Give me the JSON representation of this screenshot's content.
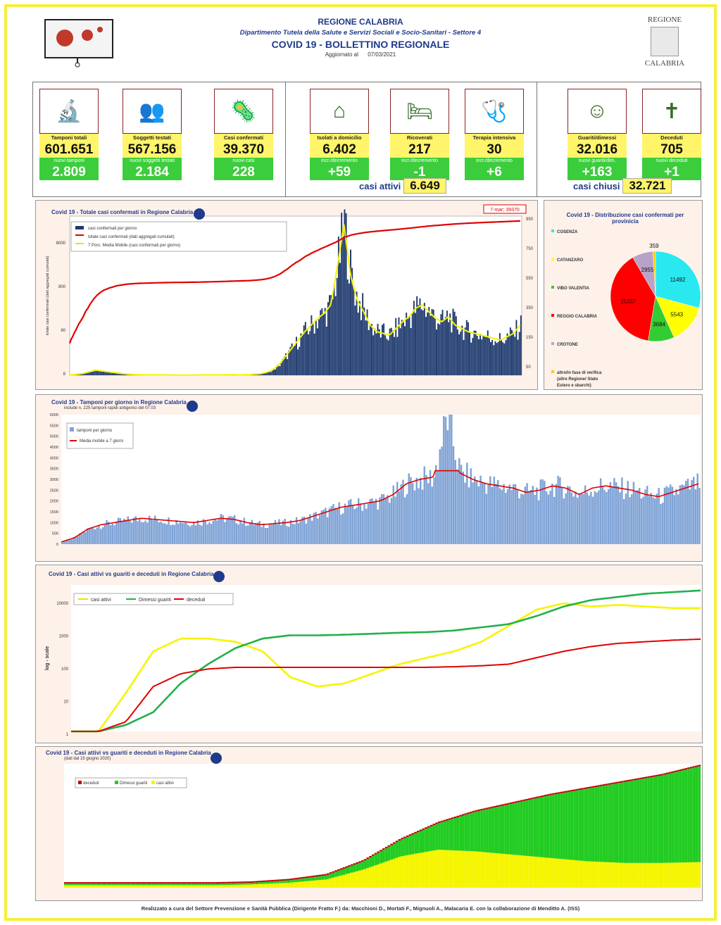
{
  "header": {
    "region": "REGIONE CALABRIA",
    "department": "Dipartimento Tutela della Salute e Servizi Sociali e Socio-Sanitari - Settore 4",
    "title": "COVID 19 - BOLLETTINO REGIONALE",
    "updated_label": "Aggiornato al",
    "updated_date": "07/03/2021",
    "logo_text_top": "REGIONE",
    "logo_text_bottom": "CALABRIA"
  },
  "kpis": [
    {
      "label": "Tamponi totali",
      "value": "601.651",
      "sub_label": "nuovi tamponi",
      "sub_value": "2.809",
      "icon": "lab-icon"
    },
    {
      "label": "Soggetti testati",
      "value": "567.156",
      "sub_label": "nuovi soggetti testati",
      "sub_value": "2.184",
      "icon": "people-icon"
    },
    {
      "label": "Casi confermati",
      "value": "39.370",
      "sub_label": "nuovi casi",
      "sub_value": "228",
      "icon": "virus-person-icon"
    },
    {
      "label": "Isolati a domicilio",
      "value": "6.402",
      "sub_label": "incr./decremento",
      "sub_value": "+59",
      "icon": "house-icon"
    },
    {
      "label": "Ricoverati",
      "value": "217",
      "sub_label": "incr./decremento",
      "sub_value": "-1",
      "icon": "bed-icon"
    },
    {
      "label": "Terapia intensiva",
      "value": "30",
      "sub_label": "incr./decremento",
      "sub_value": "+6",
      "icon": "icu-icon"
    },
    {
      "label": "Guariti/dimessi",
      "value": "32.016",
      "sub_label": "nuovi guariti/dim.",
      "sub_value": "+163",
      "icon": "recovered-icon"
    },
    {
      "label": "Deceduti",
      "value": "705",
      "sub_label": "nuovi deceduti",
      "sub_value": "+1",
      "icon": "deceased-stamp-icon"
    }
  ],
  "summary": {
    "active_label": "casi attivi",
    "active_value": "6.649",
    "closed_label": "casi chiusi",
    "closed_value": "32.721"
  },
  "colors": {
    "navy": "#1f3a6e",
    "red": "#e00000",
    "yellow": "#f5f500",
    "green": "#22b14c",
    "cyan": "#29e8f0",
    "lilac": "#b7a3c8",
    "bar_blue": "#7fa3d6"
  },
  "chart_data": [
    {
      "id": "cumulative",
      "type": "bar",
      "title": "Covid 19 - Totale casi confermati in Regione Calabria",
      "ylabel": "totale casi confermati (dati aggregati cumulati)",
      "annotation": "7-mar; 39370",
      "left_ticks": [
        "8000",
        "800",
        "80",
        "8"
      ],
      "right_ticks": [
        "950",
        "750",
        "550",
        "350",
        "150",
        "50"
      ],
      "legend": [
        "casi confermati per giorno",
        "totale casi confermati (dati aggregati cumulati)",
        "7 Porc. Media Mobile (casi confermati per giorno)"
      ],
      "series": [
        {
          "name": "casi confermati per giorno",
          "kind": "daily",
          "values": [
            2,
            5,
            10,
            20,
            30,
            25,
            20,
            15,
            10,
            6,
            4,
            3,
            2,
            2,
            2,
            2,
            1,
            1,
            1,
            1,
            2,
            2,
            2,
            2,
            3,
            3,
            2,
            3,
            5,
            8,
            15,
            30,
            60,
            110,
            160,
            210,
            260,
            300,
            340,
            370,
            420,
            650,
            900,
            600,
            450,
            380,
            300,
            260,
            250,
            240,
            280,
            320,
            350,
            400,
            420,
            380,
            340,
            320,
            350,
            300,
            280,
            260,
            250,
            240,
            230,
            220,
            210,
            230,
            250,
            300
          ]
        },
        {
          "name": "totale casi confermati (dati aggregati cumulati)",
          "kind": "cumulative"
        },
        {
          "name": "7 Porc. Media Mobile (casi confermati per giorno)",
          "kind": "moving-average"
        }
      ]
    },
    {
      "id": "pie",
      "type": "pie",
      "title": "Covid 19 - Distribuzione casi confermati per provinicia",
      "legend": [
        "COSENZA",
        "CATANZARO",
        "VIBO VALENTIA",
        "REGGIO CALABRIA",
        "CROTONE",
        "altro/in fase di verifica (altre Regione/ Stato Estero e sbarchi)"
      ],
      "categories": [
        "COSENZA",
        "CATANZARO",
        "VIBO VALENTIA",
        "REGGIO CALABRIA",
        "CROTONE",
        "altro/in fase di verifica"
      ],
      "values": [
        11492,
        5543,
        3684,
        15337,
        2955,
        359
      ],
      "labels": [
        "11492",
        "5543",
        "3684",
        "15337",
        "2955",
        "359"
      ]
    },
    {
      "id": "tamponi",
      "type": "bar",
      "title": "Covid 19 - Tamponi per giorno in Regione Calabria",
      "subtitle": "include n. 225 tamponi rapidi antigenici del 07.03",
      "ylim": [
        0,
        6000
      ],
      "yticks": [
        "6000",
        "5500",
        "5000",
        "4500",
        "4000",
        "3500",
        "3000",
        "2500",
        "2000",
        "1500",
        "1000",
        "500",
        "0"
      ],
      "legend": [
        "tamponi per giorno",
        "Media mobile a 7 giorni"
      ],
      "series": [
        {
          "name": "tamponi per giorno",
          "values": [
            100,
            300,
            700,
            900,
            1000,
            1100,
            1200,
            1150,
            1100,
            1050,
            1000,
            1100,
            1200,
            1150,
            1000,
            900,
            950,
            1000,
            1100,
            1300,
            1500,
            1700,
            1800,
            1900,
            2000,
            2300,
            2800,
            3000,
            3100,
            5900,
            3300,
            3000,
            2800,
            2700,
            2600,
            2400,
            2500,
            2700,
            2600,
            2300,
            2600,
            2700,
            2600,
            2500,
            2300,
            2200,
            2400,
            2600,
            2800
          ]
        },
        {
          "name": "Media mobile a 7 giorni"
        }
      ]
    },
    {
      "id": "log",
      "type": "line",
      "title": "Covid 19 - Casi attivi vs guariti e deceduti in Regione Calabria",
      "ylabel": "log - scale",
      "yticks": [
        "10000",
        "1000",
        "100",
        "10",
        "1"
      ],
      "legend": [
        "casi attivi",
        "Dimessi guariti",
        "deceduti"
      ]
    },
    {
      "id": "stacked",
      "type": "area",
      "title": "Covid 19 - Casi attivi vs guariti e deceduti in Regione Calabria",
      "subtitle": "(dati dal 15 giugno 2020)",
      "legend": [
        "deceduti",
        "Dimessi guariti",
        "casi attivi"
      ]
    }
  ],
  "footer": "Realizzato a cura del Settore Prevenzione e Sanità Pubblica (Dirigente Fratto F.) da: Macchioni D., Mortati F., Mignuoli A., Malacaria E. con la collaborazione di Menditto A. (ISS)"
}
